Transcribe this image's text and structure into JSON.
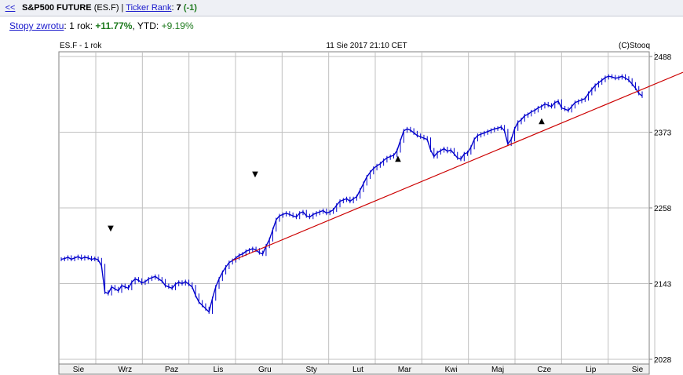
{
  "header": {
    "back_label": "<<",
    "instrument": "S&P500 FUTURE",
    "ticker": "(ES.F)",
    "separator": "|",
    "rank_label": "Ticker Rank",
    "rank_colon": ":",
    "rank_value": "7",
    "rank_change": "(-1)"
  },
  "returns": {
    "label": "Stopy zwrotu",
    "colon": ":",
    "period": "1 rok:",
    "value_1y": "+11.77%",
    "ytd_label": ", YTD:",
    "value_ytd": "+9.19%"
  },
  "chart_data": {
    "type": "line",
    "title": "ES.F - 1 rok",
    "subtitle": "11 Sie 2017 21:10 CET",
    "source": "(C)Stooq",
    "x_ticks": [
      "Sie",
      "Wrz",
      "Paz",
      "Lis",
      "Gru",
      "Sty",
      "Lut",
      "Mar",
      "Kwi",
      "Maj",
      "Cze",
      "Lip",
      "Sie"
    ],
    "y_ticks": [
      2028,
      2143,
      2258,
      2373,
      2488
    ],
    "ylim": [
      2028,
      2488
    ],
    "colors": {
      "price": "#0000cc",
      "trend": "#cc0000",
      "grid": "#c0c0c0"
    },
    "series": [
      {
        "values": [
          2180,
          2181,
          2183,
          2180,
          2182,
          2184,
          2181,
          2183,
          2182,
          2180,
          2181,
          2179,
          2170,
          2130,
          2128,
          2138,
          2135,
          2132,
          2140,
          2138,
          2136,
          2145,
          2150,
          2148,
          2144,
          2146,
          2150,
          2152,
          2154,
          2150,
          2147,
          2140,
          2138,
          2136,
          2142,
          2145,
          2143,
          2146,
          2142,
          2138,
          2125,
          2115,
          2110,
          2105,
          2100,
          2120,
          2138,
          2150,
          2160,
          2168,
          2175,
          2178,
          2182,
          2186,
          2188,
          2192,
          2194,
          2196,
          2194,
          2190,
          2188,
          2200,
          2210,
          2225,
          2240,
          2246,
          2248,
          2250,
          2248,
          2246,
          2244,
          2250,
          2252,
          2246,
          2244,
          2248,
          2250,
          2252,
          2254,
          2250,
          2252,
          2255,
          2262,
          2268,
          2270,
          2272,
          2268,
          2272,
          2275,
          2285,
          2295,
          2305,
          2312,
          2318,
          2322,
          2325,
          2330,
          2334,
          2336,
          2338,
          2345,
          2360,
          2375,
          2378,
          2376,
          2372,
          2368,
          2366,
          2364,
          2362,
          2346,
          2336,
          2342,
          2345,
          2348,
          2344,
          2346,
          2340,
          2334,
          2332,
          2340,
          2342,
          2350,
          2362,
          2368,
          2370,
          2372,
          2374,
          2376,
          2378,
          2379,
          2381,
          2375,
          2355,
          2362,
          2378,
          2388,
          2392,
          2398,
          2400,
          2404,
          2406,
          2410,
          2412,
          2416,
          2414,
          2412,
          2418,
          2420,
          2410,
          2408,
          2406,
          2412,
          2418,
          2420,
          2422,
          2424,
          2432,
          2438,
          2444,
          2448,
          2452,
          2456,
          2458,
          2457,
          2455,
          2456,
          2458,
          2455,
          2452,
          2446,
          2440,
          2432,
          2428
        ]
      }
    ],
    "trendline": [
      [
        2178,
        2436
      ]
    ],
    "annotations": [
      {
        "symbol": "▼",
        "kind": "down-marker"
      },
      {
        "symbol": "▼",
        "kind": "down-marker"
      },
      {
        "symbol": "▲",
        "kind": "up-marker"
      },
      {
        "symbol": "▲",
        "kind": "up-marker"
      }
    ]
  }
}
